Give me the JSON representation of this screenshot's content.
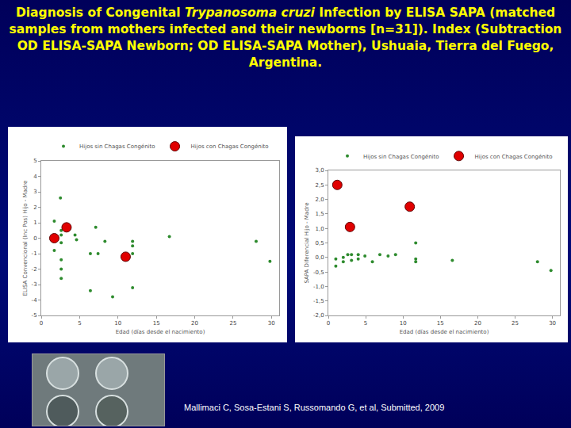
{
  "title_parts": [
    {
      "text": "Diagnosis of Congenital "
    },
    {
      "text": "Trypanosoma cruzi",
      "style": "italic"
    },
    {
      "text": " Infection by ELISA SAPA (matched samples from mothers infected and their newborns [n=31]). Index (Subtraction OD ELISA-SAPA Newborn; OD ELISA-SAPA Mother), Ushuaia, Tierra del Fuego, Argentina."
    }
  ],
  "citation": "Mallimaci C, Sosa-Estani S, Russomando G, et al, Submitted, 2009",
  "chart_data": [
    {
      "type": "scatter",
      "x_label": "Edad (días desde el nacimiento)",
      "y_label": "ELISA Convencional (Inc Pos) Hijo - Madre",
      "xlim": [
        0,
        31
      ],
      "xticks": [
        0,
        5,
        10,
        15,
        20,
        25,
        30
      ],
      "ylim": [
        -5,
        5
      ],
      "yticks": [
        -5,
        -4,
        -3,
        -2,
        -1,
        0,
        1,
        2,
        3,
        4,
        5
      ],
      "grid": false,
      "legend": "top",
      "series": [
        {
          "name": "Hijos sin Chagas Congénito",
          "color": "#2e8b2e",
          "marker": "circle",
          "x": [
            1.7,
            2.5,
            2.6,
            2.6,
            2.6,
            2.6,
            2.6,
            2.6,
            4.4,
            4.6,
            7.1,
            6.4,
            7.4,
            8.3,
            6.4,
            9.3,
            11.9,
            11.9,
            11.9,
            11.9,
            16.7,
            28,
            29.8,
            1.7
          ],
          "values": [
            1.1,
            2.6,
            0.2,
            -0.3,
            -1.4,
            -2,
            -2.6,
            0.5,
            0.2,
            -0.1,
            0.7,
            -1,
            -1,
            -0.2,
            -3.4,
            -3.8,
            -0.2,
            -0.5,
            -1,
            -3.2,
            0.1,
            -0.2,
            -1.5,
            -0.8
          ]
        },
        {
          "name": "Hijos con Chagas Congénito",
          "color": "#e00000",
          "marker": "circle",
          "x": [
            1.7,
            3.3,
            11
          ],
          "values": [
            0,
            0.7,
            -1.2
          ]
        }
      ]
    },
    {
      "type": "scatter",
      "x_label": "Edad (días desde el nacimiento)",
      "y_label": "SAPA Diferencial Hijo - Madre",
      "xlim": [
        0,
        31
      ],
      "xticks": [
        0,
        5,
        10,
        15,
        20,
        25,
        30
      ],
      "ylim": [
        -2,
        3
      ],
      "yticks": [
        {
          "value": -2,
          "label": "-2,0"
        },
        {
          "value": -1.5,
          "label": "-1,5"
        },
        {
          "value": -1,
          "label": "-1,0"
        },
        {
          "value": -0.5,
          "label": "-0,5"
        },
        {
          "value": 0,
          "label": "0,0"
        },
        {
          "value": 0.5,
          "label": "0,5"
        },
        {
          "value": 1,
          "label": "1,0"
        },
        {
          "value": 1.5,
          "label": "1,5"
        },
        {
          "value": 2,
          "label": "2,0"
        },
        {
          "value": 2.5,
          "label": "2,5"
        },
        {
          "value": 3,
          "label": "3,0"
        }
      ],
      "grid": false,
      "legend": "top",
      "series": [
        {
          "name": "Hijos sin Chagas Congénito",
          "color": "#2e8b2e",
          "marker": "circle",
          "x": [
            1,
            1,
            2,
            2,
            2.6,
            3.1,
            3.1,
            4,
            4,
            4.9,
            5.9,
            6.9,
            8,
            9,
            11.7,
            11.7,
            11.7,
            16.6,
            28,
            29.8
          ],
          "values": [
            -0.05,
            -0.3,
            0,
            -0.15,
            0.1,
            0.1,
            -0.1,
            0.1,
            -0.05,
            0.05,
            -0.15,
            0.1,
            0.05,
            0.1,
            0.5,
            -0.05,
            -0.15,
            -0.1,
            -0.15,
            -0.45
          ]
        },
        {
          "name": "Hijos con Chagas Congénito",
          "color": "#e00000",
          "marker": "circle",
          "x": [
            1.2,
            2.9,
            10.9
          ],
          "values": [
            2.5,
            1.05,
            1.75
          ]
        }
      ]
    }
  ]
}
